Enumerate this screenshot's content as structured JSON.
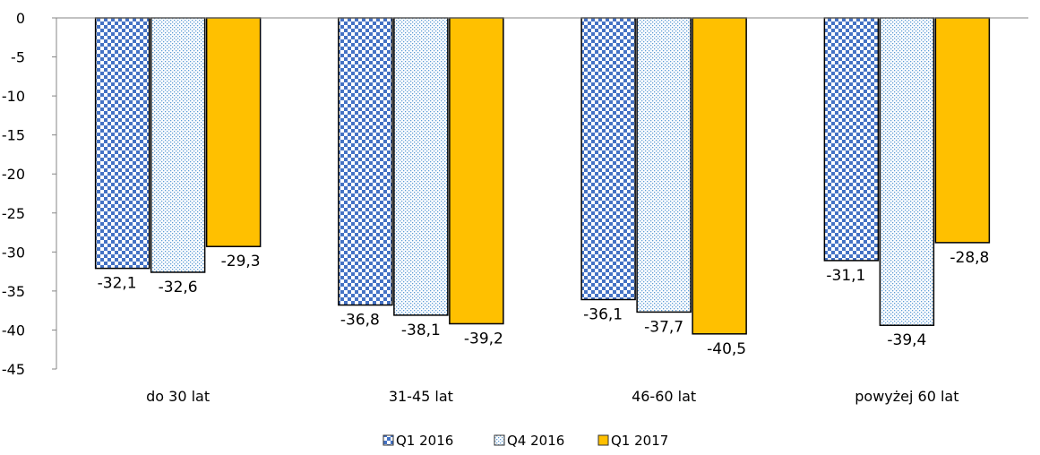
{
  "chart_data": {
    "type": "bar",
    "categories": [
      "do 30 lat",
      "31-45 lat",
      "46-60 lat",
      "powyżej 60 lat"
    ],
    "series": [
      {
        "name": "Q1 2016",
        "values": [
          -32.1,
          -36.8,
          -36.1,
          -31.1
        ],
        "labels": [
          "-32,1",
          "-36,8",
          "-36,1",
          "-31,1"
        ],
        "pattern": "checker",
        "color": "#4472C4"
      },
      {
        "name": "Q4 2016",
        "values": [
          -32.6,
          -38.1,
          -37.7,
          -39.4
        ],
        "labels": [
          "-32,6",
          "-38,1",
          "-37,7",
          "-39,4"
        ],
        "pattern": "dots",
        "color": "#5B9BD5"
      },
      {
        "name": "Q1 2017",
        "values": [
          -29.3,
          -39.2,
          -40.5,
          -28.8
        ],
        "labels": [
          "-29,3",
          "-39,2",
          "-40,5",
          "-28,8"
        ],
        "pattern": "solid",
        "color": "#FFC000"
      }
    ],
    "yticks": [
      0,
      -5,
      -10,
      -15,
      -20,
      -25,
      -30,
      -35,
      -40,
      -45
    ],
    "ylim": [
      -45,
      0
    ],
    "grid": false,
    "legend_position": "bottom-center",
    "title": "",
    "xlabel": "",
    "ylabel": ""
  }
}
